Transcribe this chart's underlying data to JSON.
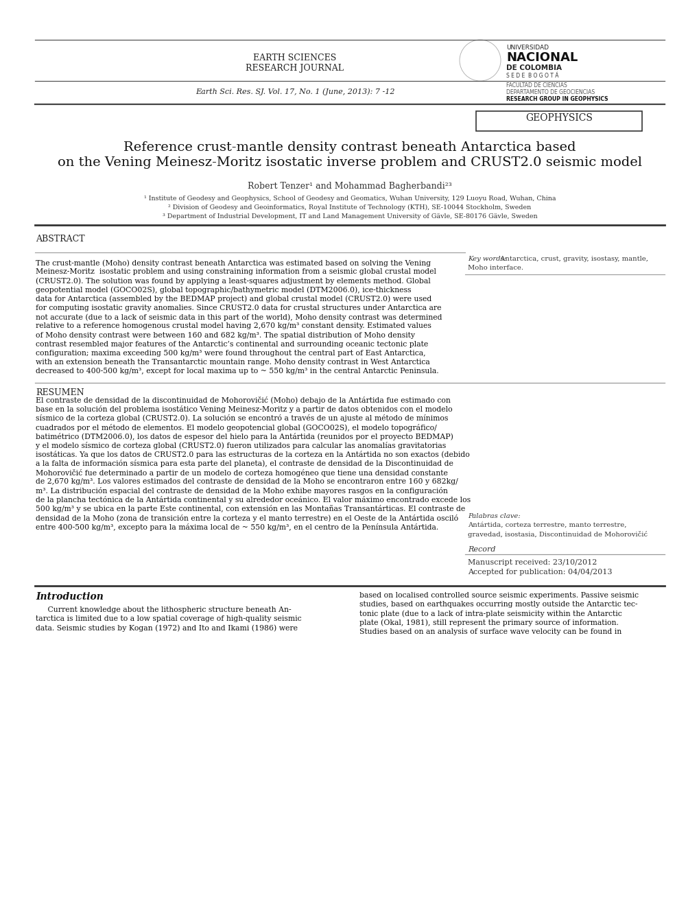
{
  "bg_color": "#ffffff",
  "journal_name_line1": "EARTH SCIENCES",
  "journal_name_line2": "RESEARCH JOURNAL",
  "journal_citation": "Earth Sci. Res. SJ. Vol. 17, No. 1 (June, 2013): 7 -12",
  "univ_name1": "UNIVERSIDAD",
  "univ_name2": "NACIONAL",
  "univ_name3": "DE COLOMBIA",
  "univ_name4": "S E D E  B O G O T Á",
  "univ_name5": "FACULTAD DE CIENCIAS",
  "univ_name6": "DEPARTAMENTO DE GEOCIENCIAS",
  "univ_name7": "RESEARCH GROUP IN GEOPHYSICS",
  "section_tag": "GEOPHYSICS",
  "paper_title_line1": "Reference crust-mantle density contrast beneath Antarctica based",
  "paper_title_line2": "on the Vening Meinesz-Moritz isostatic inverse problem and CRUST2.0 seismic model",
  "authors": "Robert Tenzer¹ and Mohammad Bagherbandi²³",
  "affil1": "¹ Institute of Geodesy and Geophysics, School of Geodesy and Geomatics, Wuhan University, 129 Luoyu Road, Wuhan, China",
  "affil2": "² Division of Geodesy and Geoinformatics, Royal Institute of Technology (KTH), SE-10044 Stockholm, Sweden",
  "affil3": "³ Department of Industrial Development, IT and Land Management University of Gävle, SE-80176 Gävle, Sweden",
  "abstract_label": "ABSTRACT",
  "keywords_label": "Key words:",
  "abstract_lines": [
    "The crust-mantle (Moho) density contrast beneath Antarctica was estimated based on solving the Vening",
    "Meinesz-Moritz  isostatic problem and using constraining information from a seismic global crustal model",
    "(CRUST2.0). The solution was found by applying a least-squares adjustment by elements method. Global",
    "geopotential model (GOCO02S), global topographic/bathymetric model (DTM2006.0), ice-thickness",
    "data for Antarctica (assembled by the BEDMAP project) and global crustal model (CRUST2.0) were used",
    "for computing isostatic gravity anomalies. Since CRUST2.0 data for crustal structures under Antarctica are",
    "not accurate (due to a lack of seismic data in this part of the world), Moho density contrast was determined",
    "relative to a reference homogenous crustal model having 2,670 kg/m³ constant density. Estimated values",
    "of Moho density contrast were between 160 and 682 kg/m³. The spatial distribution of Moho density",
    "contrast resembled major features of the Antarctic’s continental and surrounding oceanic tectonic plate",
    "configuration; maxima exceeding 500 kg/m³ were found throughout the central part of East Antarctica,",
    "with an extension beneath the Transantarctic mountain range. Moho density contrast in West Antarctica",
    "decreased to 400-500 kg/m³, except for local maxima up to ~ 550 kg/m³ in the central Antarctic Peninsula."
  ],
  "resumen_label": "RESUMEN",
  "resumen_lines": [
    "El contraste de densidad de la discontinuidad de Mohorovičić (Moho) debajo de la Antártida fue estimado con",
    "base en la solución del problema isostático Vening Meinesz-Moritz y a partir de datos obtenidos con el modelo",
    "sísmico de la corteza global (CRUST2.0). La solución se encontró a través de un ajuste al método de mínimos",
    "cuadrados por el método de elementos. El modelo geopotencial global (GOCO02S), el modelo topográfico/",
    "batimétrico (DTM2006.0), los datos de espesor del hielo para la Antártida (reunidos por el proyecto BEDMAP)",
    "y el modelo sísmico de corteza global (CRUST2.0) fueron utilizados para calcular las anomalías gravitatorias",
    "isostáticas. Ya que los datos de CRUST2.0 para las estructuras de la corteza en la Antártida no son exactos (debido",
    "a la falta de información sísmica para esta parte del planeta), el contraste de densidad de la Discontinuidad de",
    "Mohorovičić fue determinado a partir de un modelo de corteza homogéneo que tiene una densidad constante",
    "de 2,670 kg/m³. Los valores estimados del contraste de densidad de la Moho se encontraron entre 160 y 682kg/",
    "m³. La distribución espacial del contraste de densidad de la Moho exhibe mayores rasgos en la configuración",
    "de la plancha tectónica de la Antártida continental y su alrededor oceánico. El valor máximo encontrado excede los",
    "500 kg/m³ y se ubica en la parte Este continental, con extensión en las Montañas Transantárticas. El contraste de",
    "densidad de la Moho (zona de transición entre la corteza y el manto terrestre) en el Oeste de la Antártida osciló",
    "entre 400-500 kg/m³, excepto para la máxima local de ~ 550 kg/m³, en el centro de la Península Antártida."
  ],
  "palabras_label": "Palabras clave:",
  "palabras_line1": "Antártida, corteza terrestre, manto terrestre,",
  "palabras_line2": "gravedad, isostasia, Discontinuidad de Mohorovičić",
  "record_label": "Record",
  "manuscript_received": "Manuscript received: 23/10/2012",
  "accepted": "Accepted for publication: 04/04/2013",
  "intro_label": "Introduction",
  "intro_left_lines": [
    "     Current knowledge about the lithospheric structure beneath An-",
    "tarctica is limited due to a low spatial coverage of high-quality seismic",
    "data. Seismic studies by Kogan (1972) and Ito and Ikami (1986) were"
  ],
  "intro_right_lines": [
    "based on localised controlled source seismic experiments. Passive seismic",
    "studies, based on earthquakes occurring mostly outside the Antarctic tec-",
    "tonic plate (due to a lack of intra-plate seismicity within the Antarctic",
    "plate (Okal, 1981), still represent the primary source of information.",
    "Studies based on an analysis of surface wave velocity can be found in"
  ]
}
